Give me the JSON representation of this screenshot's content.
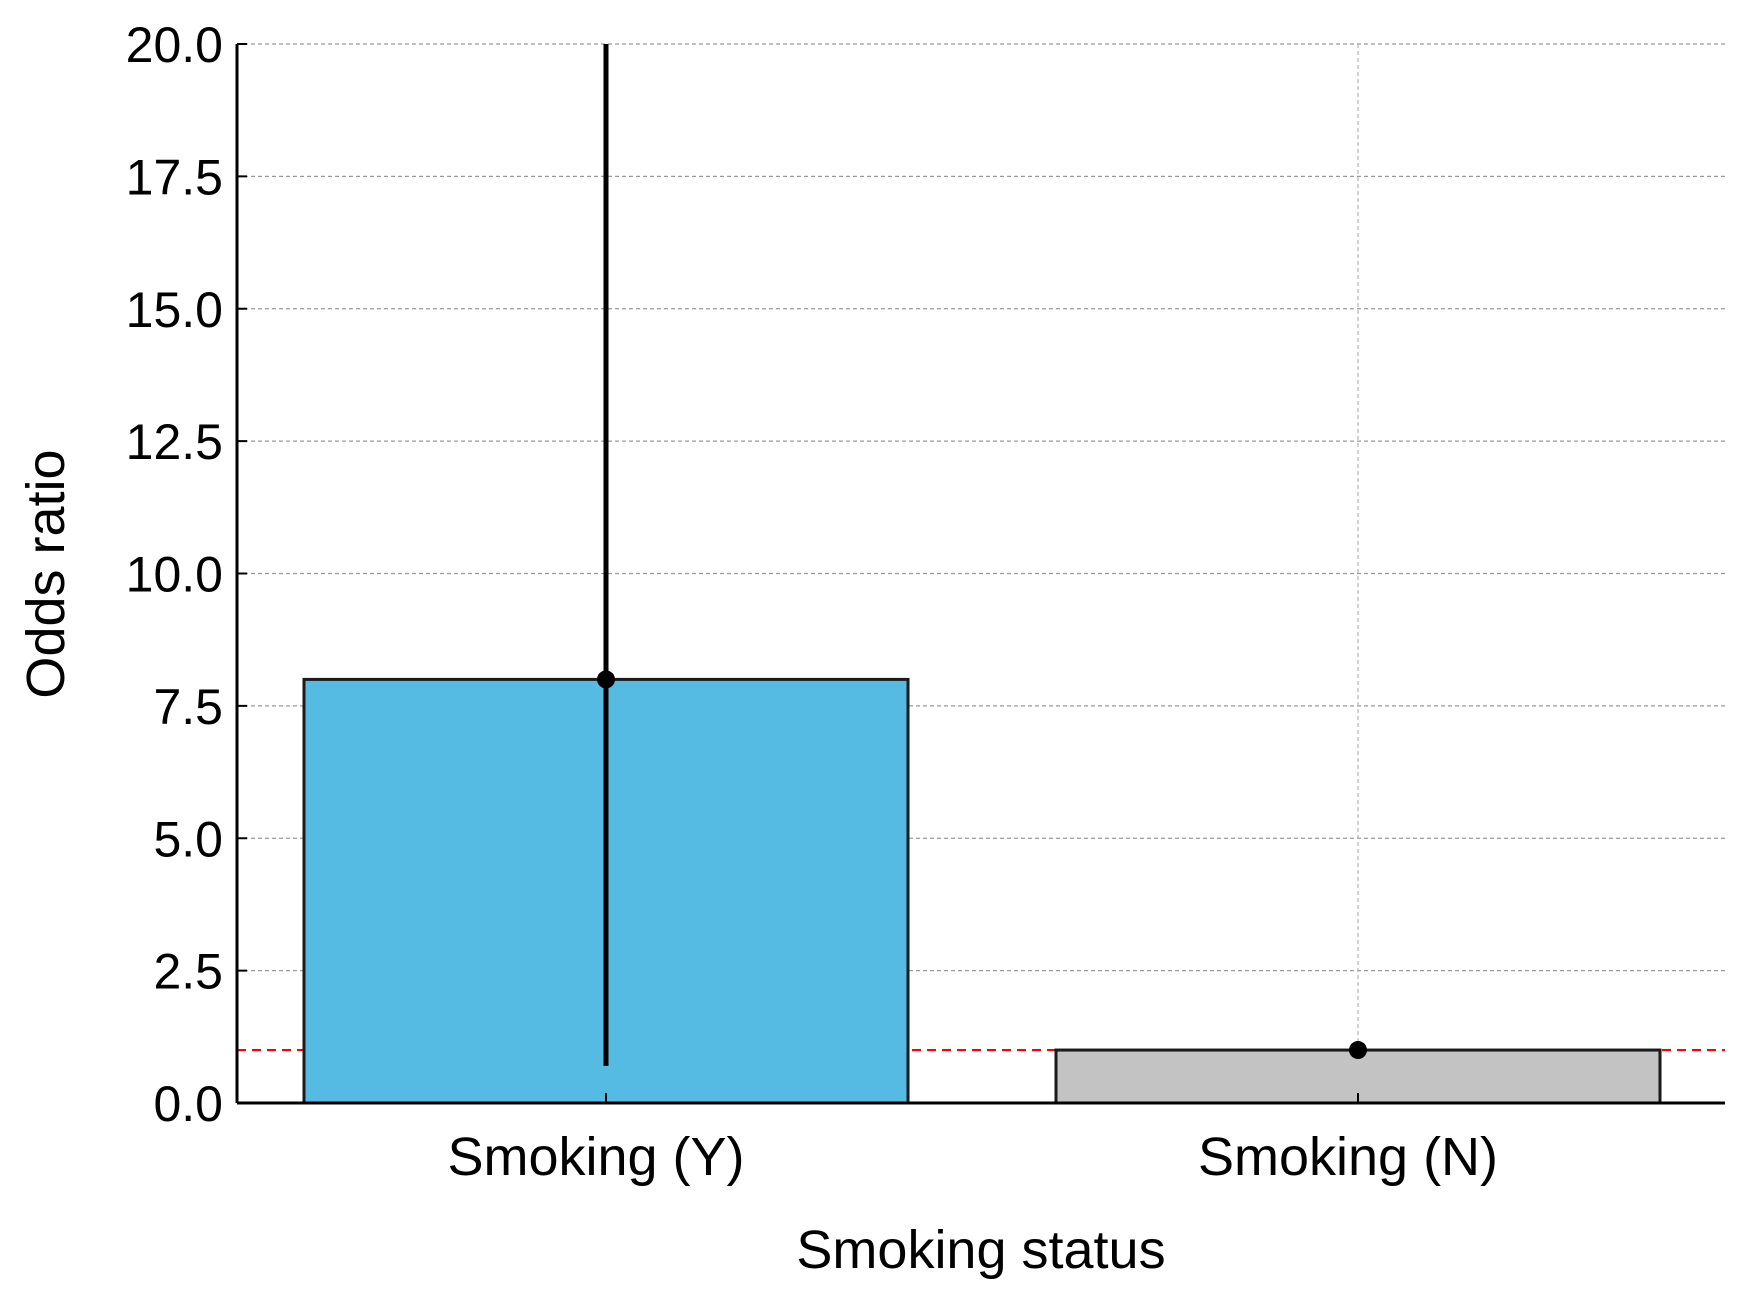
{
  "chart_data": {
    "type": "bar",
    "title": "",
    "xlabel": "Smoking status",
    "ylabel": "Odds ratio",
    "categories": [
      "Smoking (Y)",
      "Smoking (N)"
    ],
    "values": [
      8.0,
      1.0
    ],
    "error_bars": [
      {
        "lower": 0.7,
        "upper": 20.0
      },
      {
        "lower": 1.0,
        "upper": 1.0
      }
    ],
    "bar_colors": [
      "#56bbe3",
      "#c3c3c3"
    ],
    "reference_line": {
      "y": 1.0,
      "color": "#ff0000",
      "style": "dashed"
    },
    "ylim": [
      0,
      20
    ],
    "yticks": [
      0.0,
      2.5,
      5.0,
      7.5,
      10.0,
      12.5,
      15.0,
      17.5,
      20.0
    ],
    "ytick_labels": [
      "0.0",
      "2.5",
      "5.0",
      "7.5",
      "10.0",
      "12.5",
      "15.0",
      "17.5",
      "20.0"
    ],
    "grid": true,
    "legend": "none"
  }
}
